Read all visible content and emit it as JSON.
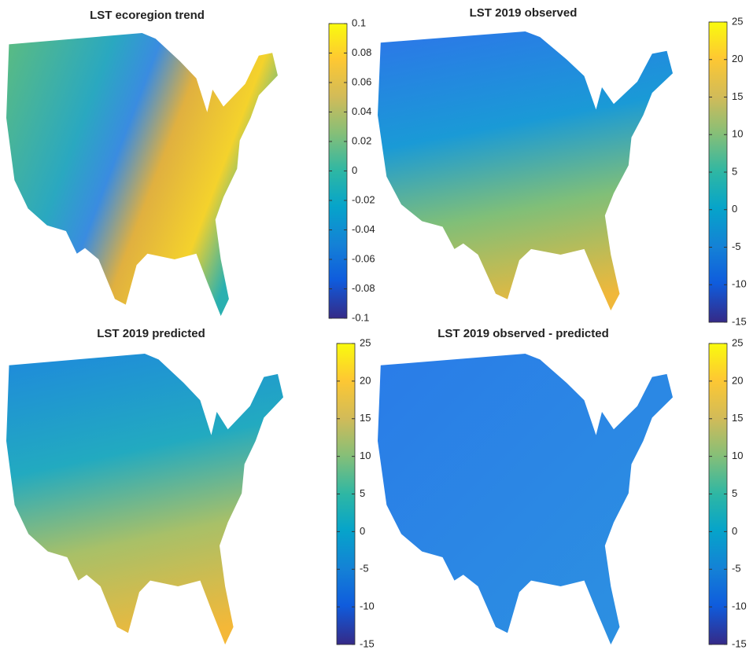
{
  "panels": [
    {
      "title": "LST ecoregion trend",
      "clim": [
        -0.1,
        0.1
      ],
      "cticks": [
        0.1,
        0.08,
        0.06,
        0.04,
        0.02,
        0,
        -0.02,
        -0.04,
        -0.06,
        -0.08,
        -0.1
      ]
    },
    {
      "title": "LST 2019 observed",
      "clim": [
        -15,
        25
      ],
      "cticks": [
        25,
        20,
        15,
        10,
        5,
        0,
        -5,
        -10,
        -15
      ]
    },
    {
      "title": "LST 2019 predicted",
      "clim": [
        -15,
        25
      ],
      "cticks": [
        25,
        20,
        15,
        10,
        5,
        0,
        -5,
        -10,
        -15
      ]
    },
    {
      "title": "LST 2019 observed - predicted",
      "clim": [
        -15,
        25
      ],
      "cticks": [
        25,
        20,
        15,
        10,
        5,
        0,
        -5,
        -10,
        -15
      ]
    }
  ]
}
